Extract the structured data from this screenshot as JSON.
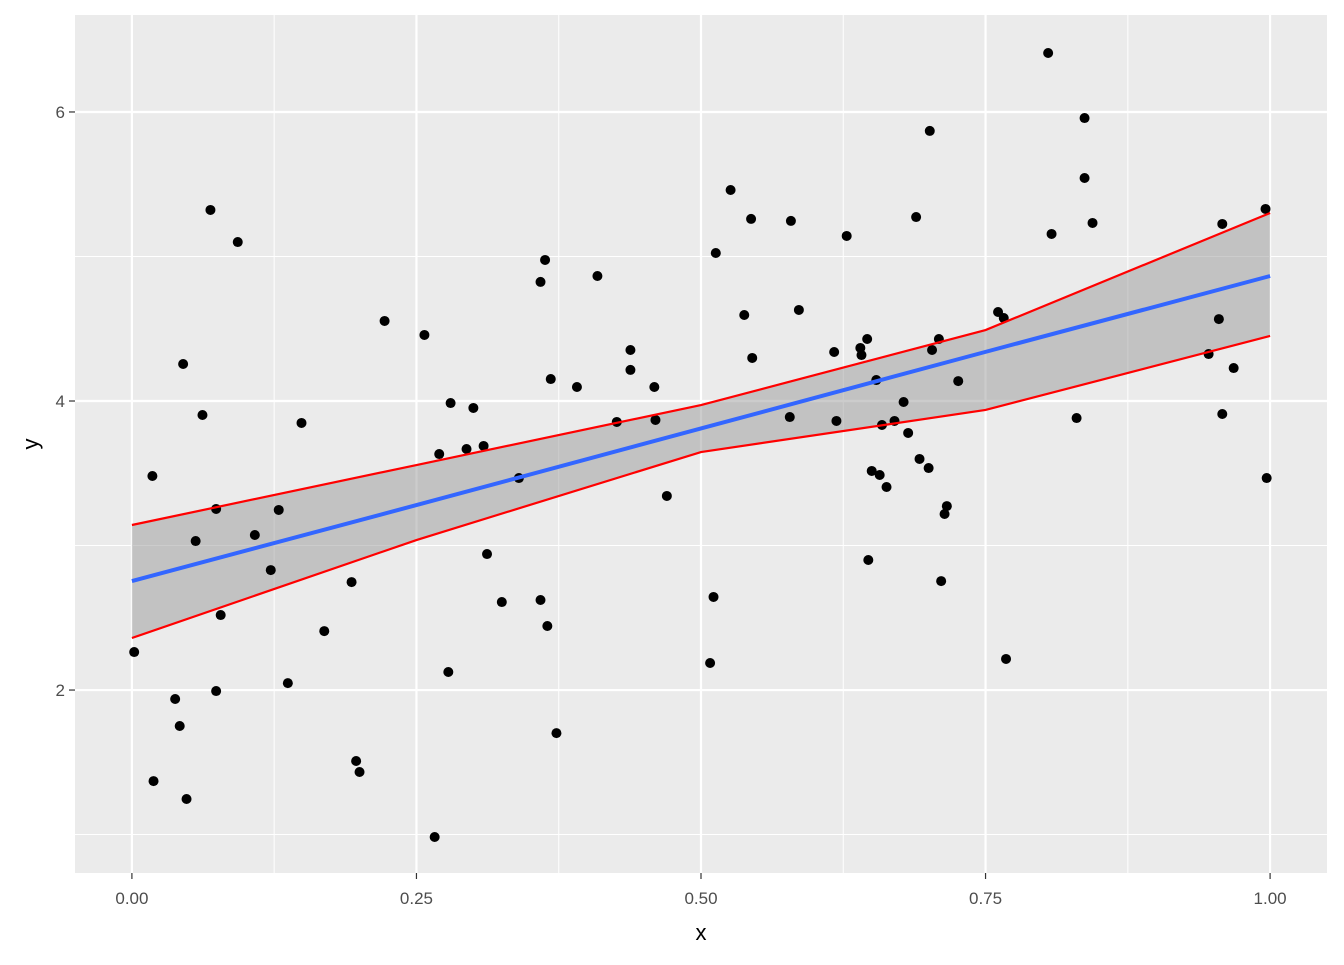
{
  "chart_data": {
    "type": "scatter",
    "x_label": "x",
    "y_label": "y",
    "xlim": [
      -0.05,
      1.05
    ],
    "ylim": [
      0.734,
      6.671
    ],
    "xticks": [
      {
        "value": 0,
        "label": "0.00"
      },
      {
        "value": 0.25,
        "label": "0.25"
      },
      {
        "value": 0.5,
        "label": "0.50"
      },
      {
        "value": 0.75,
        "label": "0.75"
      },
      {
        "value": 1,
        "label": "1.00"
      }
    ],
    "yticks": [
      2,
      4,
      6
    ],
    "x_minor_grid": [
      0.125,
      0.375,
      0.625,
      0.875
    ],
    "y_minor_grid": [
      1,
      3,
      5
    ],
    "grid": true,
    "color": "#000000",
    "x": [
      0.002,
      0.018,
      0.019,
      0.038,
      0.042,
      0.045,
      0.048,
      0.056,
      0.062,
      0.069,
      0.074,
      0.074,
      0.078,
      0.093,
      0.108,
      0.122,
      0.129,
      0.137,
      0.149,
      0.169,
      0.193,
      0.197,
      0.2,
      0.222,
      0.257,
      0.266,
      0.27,
      0.278,
      0.28,
      0.294,
      0.3,
      0.309,
      0.312,
      0.325,
      0.34,
      0.359,
      0.359,
      0.363,
      0.365,
      0.368,
      0.373,
      0.391,
      0.409,
      0.426,
      0.438,
      0.438,
      0.459,
      0.46,
      0.47,
      0.508,
      0.511,
      0.513,
      0.526,
      0.538,
      0.544,
      0.545,
      0.578,
      0.579,
      0.586,
      0.617,
      0.619,
      0.628,
      0.64,
      0.641,
      0.646,
      0.647,
      0.65,
      0.654,
      0.657,
      0.659,
      0.663,
      0.67,
      0.678,
      0.682,
      0.689,
      0.692,
      0.7,
      0.701,
      0.703,
      0.709,
      0.711,
      0.714,
      0.716,
      0.726,
      0.761,
      0.766,
      0.768,
      0.805,
      0.808,
      0.83,
      0.837,
      0.837,
      0.844,
      0.946,
      0.955,
      0.958,
      0.958,
      0.968,
      0.996,
      0.997
    ],
    "values": [
      2.263,
      3.481,
      1.37,
      1.938,
      1.751,
      4.256,
      1.246,
      3.031,
      3.903,
      5.322,
      3.253,
      1.993,
      2.519,
      5.1,
      3.073,
      2.83,
      3.246,
      2.048,
      3.848,
      2.408,
      2.747,
      1.509,
      1.433,
      4.554,
      4.457,
      0.983,
      3.633,
      2.125,
      3.986,
      3.668,
      3.952,
      3.689,
      2.941,
      2.609,
      3.467,
      2.623,
      4.824,
      4.976,
      2.443,
      4.152,
      1.702,
      4.097,
      4.865,
      3.855,
      4.215,
      4.353,
      4.097,
      3.869,
      3.343,
      2.187,
      2.644,
      5.024,
      5.46,
      4.595,
      5.26,
      4.298,
      3.889,
      5.246,
      4.63,
      4.339,
      3.862,
      5.142,
      4.367,
      4.318,
      4.429,
      2.9,
      3.516,
      4.145,
      3.488,
      3.834,
      3.405,
      3.862,
      3.993,
      3.779,
      5.273,
      3.599,
      3.536,
      5.869,
      4.353,
      4.429,
      2.754,
      3.218,
      3.273,
      4.138,
      4.616,
      4.574,
      2.215,
      6.408,
      5.156,
      3.882,
      5.543,
      5.958,
      5.232,
      4.325,
      4.567,
      5.225,
      3.91,
      4.228,
      5.329,
      3.467
    ],
    "fit": {
      "x": [
        0,
        0.25,
        0.5,
        0.75,
        1
      ],
      "y": [
        2.754,
        3.28,
        3.81,
        4.34,
        4.865
      ],
      "lower": [
        2.36,
        3.038,
        3.647,
        3.938,
        4.45
      ],
      "upper": [
        3.142,
        3.557,
        3.972,
        4.491,
        5.301
      ],
      "color": "#3366ff",
      "band_color": "#ff0000",
      "band_fill": "#999999"
    }
  }
}
